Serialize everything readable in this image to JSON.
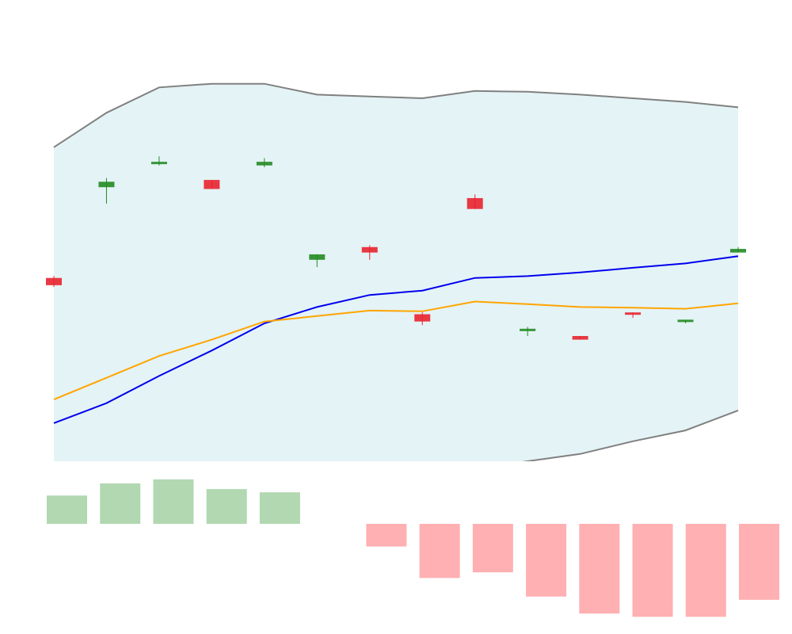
{
  "chart_data": [
    {
      "type": "candlestick",
      "title": "",
      "xlabel": "",
      "ylabel": "",
      "grid": false,
      "legend": "none",
      "ylim": [
        0,
        100
      ],
      "x": [
        1,
        2,
        3,
        4,
        5,
        6,
        7,
        8,
        9,
        10,
        11,
        12,
        13,
        14
      ],
      "candles": [
        {
          "open": 50.5,
          "high": 51.0,
          "low": 48.0,
          "close": 48.5,
          "direction": "down"
        },
        {
          "open": 77.0,
          "high": 78.0,
          "low": 71.0,
          "close": 75.5,
          "direction": "up"
        },
        {
          "open": 82.0,
          "high": 84.0,
          "low": 81.5,
          "close": 82.5,
          "direction": "up"
        },
        {
          "open": 77.5,
          "high": 77.5,
          "low": 75.0,
          "close": 75.0,
          "direction": "down"
        },
        {
          "open": 81.5,
          "high": 83.5,
          "low": 81.0,
          "close": 82.5,
          "direction": "up"
        },
        {
          "open": 55.5,
          "high": 57.0,
          "low": 53.5,
          "close": 57.0,
          "direction": "up"
        },
        {
          "open": 59.0,
          "high": 59.5,
          "low": 55.5,
          "close": 57.5,
          "direction": "down"
        },
        {
          "open": 40.5,
          "high": 41.0,
          "low": 37.5,
          "close": 38.5,
          "direction": "down"
        },
        {
          "open": 72.5,
          "high": 73.5,
          "low": 69.5,
          "close": 69.5,
          "direction": "down"
        },
        {
          "open": 36.5,
          "high": 37.0,
          "low": 34.5,
          "close": 36.5,
          "direction": "up"
        },
        {
          "open": 34.5,
          "high": 34.5,
          "low": 33.5,
          "close": 33.5,
          "direction": "down"
        },
        {
          "open": 41.0,
          "high": 41.0,
          "low": 39.5,
          "close": 41.0,
          "direction": "down"
        },
        {
          "open": 38.5,
          "high": 39.0,
          "low": 38.0,
          "close": 39.0,
          "direction": "up"
        },
        {
          "open": 57.5,
          "high": 59.0,
          "low": 57.5,
          "close": 58.5,
          "direction": "up"
        }
      ],
      "series": [
        {
          "type": "line",
          "color": "#0000ee",
          "values": [
            10.5,
            16.0,
            23.5,
            30.5,
            38.0,
            42.5,
            45.8,
            47.0,
            50.5,
            51.0,
            52.0,
            53.3,
            54.5,
            56.5
          ]
        },
        {
          "type": "line",
          "color": "#ffa500",
          "values": [
            17.0,
            23.0,
            29.0,
            33.5,
            38.5,
            40.0,
            41.5,
            41.3,
            44.0,
            43.3,
            42.5,
            42.3,
            42.0,
            43.5
          ]
        },
        {
          "type": "band",
          "fill": "#e4f3f6",
          "line_color": "#808080",
          "upper": [
            86.5,
            96.0,
            103.0,
            104.0,
            104.0,
            101.0,
            100.5,
            100.0,
            102.0,
            101.8,
            101.0,
            100.0,
            99.0,
            97.5
          ],
          "lower": [
            -17.0,
            -13.5,
            -11.0,
            -9.0,
            -7.5,
            -6.0,
            -4.8,
            -3.0,
            -2.0,
            0.0,
            2.0,
            5.5,
            8.5,
            14.0
          ]
        }
      ]
    },
    {
      "type": "bar",
      "title": "",
      "xlabel": "",
      "ylabel": "",
      "grid": false,
      "legend": "none",
      "ylim": [
        -12,
        6
      ],
      "x": [
        1,
        2,
        3,
        4,
        5,
        6,
        7,
        8,
        9,
        10,
        11,
        12,
        13,
        14
      ],
      "values": [
        3.5,
        5.0,
        5.5,
        4.3,
        3.9,
        0,
        -2.8,
        -6.7,
        -6.0,
        -9.0,
        -11.1,
        -11.5,
        -11.5,
        -9.4
      ],
      "colors": {
        "positive": "#b2d8b2",
        "negative": "#ffb0b2"
      }
    }
  ]
}
